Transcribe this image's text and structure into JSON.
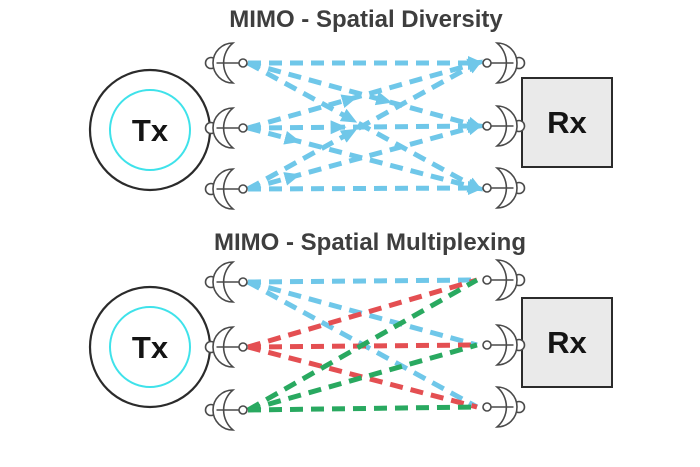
{
  "colors": {
    "blue": "#6FC7E9",
    "red": "#E44F52",
    "green": "#29A960",
    "cyan": "#3FE2EA",
    "box_fill": "#EAEAEA",
    "outline": "#2B2B2B",
    "antenna": "#4A4A4A",
    "title": "#3E3E3E",
    "label": "#141414"
  },
  "diagrams": [
    {
      "title": "MIMO - Spatial Diversity",
      "tx_label": "Tx",
      "rx_label": "Rx",
      "arrows": true,
      "links": [
        {
          "from": 1,
          "to": 1,
          "color": "blue"
        },
        {
          "from": 1,
          "to": 2,
          "color": "blue",
          "mid": 0.6
        },
        {
          "from": 1,
          "to": 3,
          "color": "blue",
          "mid": 0.45
        },
        {
          "from": 2,
          "to": 1,
          "color": "blue",
          "mid": 0.45
        },
        {
          "from": 2,
          "to": 2,
          "color": "blue",
          "mid": 0.4
        },
        {
          "from": 2,
          "to": 3,
          "color": "blue",
          "mid": 0.2
        },
        {
          "from": 3,
          "to": 1,
          "color": "blue",
          "mid": 0.45
        },
        {
          "from": 3,
          "to": 2,
          "color": "blue",
          "mid": 0.2
        },
        {
          "from": 3,
          "to": 3,
          "color": "blue"
        }
      ]
    },
    {
      "title": "MIMO - Spatial Multiplexing",
      "tx_label": "Tx",
      "rx_label": "Rx",
      "arrows": false,
      "links": [
        {
          "from": 1,
          "to": 1,
          "color": "blue"
        },
        {
          "from": 1,
          "to": 2,
          "color": "blue"
        },
        {
          "from": 1,
          "to": 3,
          "color": "blue"
        },
        {
          "from": 2,
          "to": 1,
          "color": "red"
        },
        {
          "from": 2,
          "to": 2,
          "color": "red"
        },
        {
          "from": 2,
          "to": 3,
          "color": "red"
        },
        {
          "from": 3,
          "to": 1,
          "color": "green"
        },
        {
          "from": 3,
          "to": 2,
          "color": "green"
        },
        {
          "from": 3,
          "to": 3,
          "color": "green"
        }
      ]
    }
  ]
}
